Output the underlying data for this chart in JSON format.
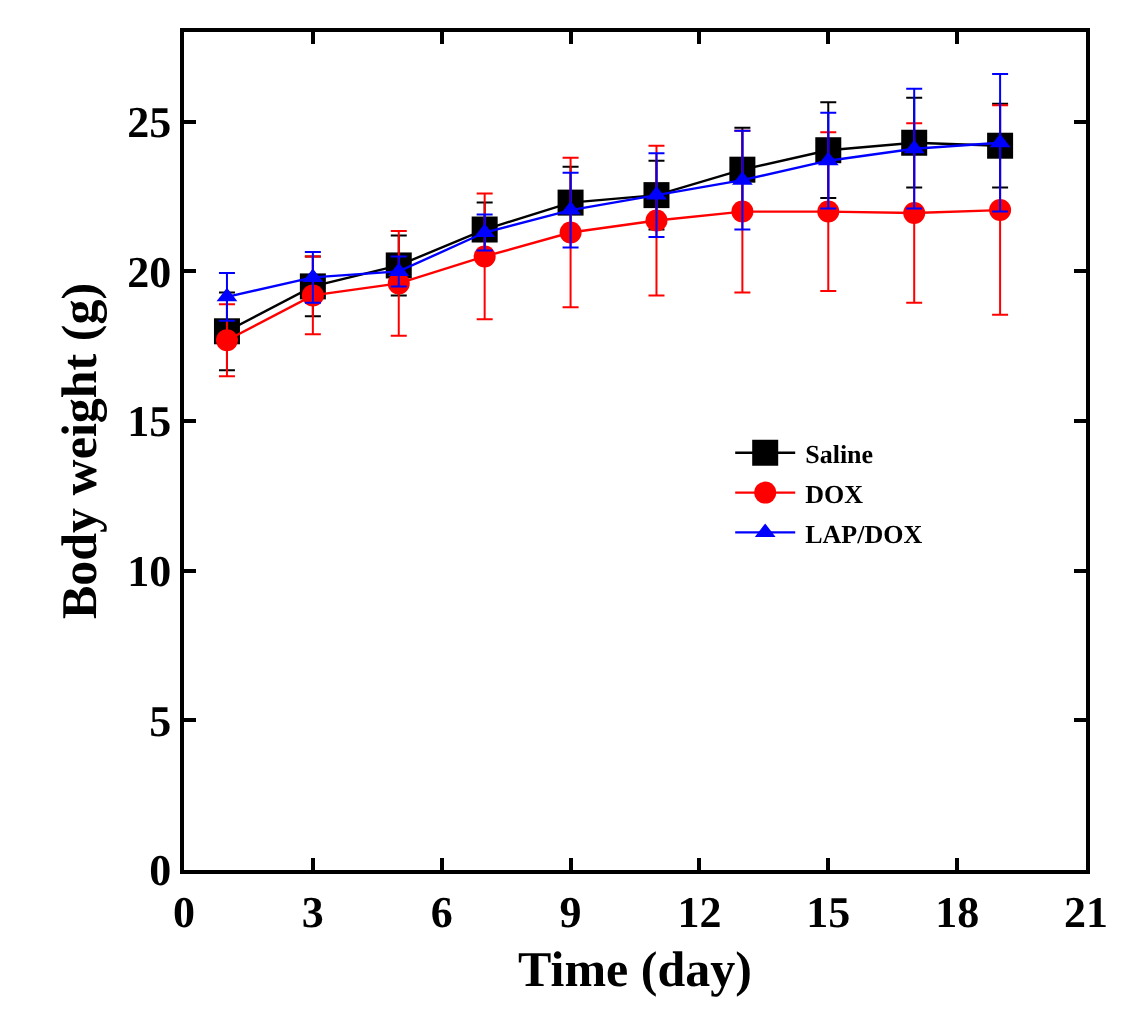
{
  "chart_data": {
    "type": "line",
    "xlabel": "Time (day)",
    "ylabel": "Body weight (g)",
    "x": [
      1,
      3,
      5,
      7,
      9,
      11,
      13,
      15,
      17,
      19
    ],
    "xlim": [
      0,
      21
    ],
    "xticks": [
      0,
      3,
      6,
      9,
      12,
      15,
      18,
      21
    ],
    "ylim": [
      0,
      28
    ],
    "yticks": [
      0,
      5,
      10,
      15,
      20,
      25
    ],
    "legend": "right",
    "series": [
      {
        "name": "Saline",
        "color": "#000000",
        "marker": "square",
        "values": [
          18.0,
          19.5,
          20.2,
          21.4,
          22.3,
          22.55,
          23.4,
          24.05,
          24.3,
          24.2
        ],
        "errors": [
          1.3,
          1.0,
          1.0,
          0.9,
          1.2,
          1.15,
          1.4,
          1.6,
          1.5,
          1.4
        ]
      },
      {
        "name": "DOX",
        "color": "#ff0000",
        "marker": "circle",
        "values": [
          17.7,
          19.2,
          19.6,
          20.5,
          21.3,
          21.7,
          22.0,
          22.0,
          21.95,
          22.05
        ],
        "errors": [
          1.2,
          1.3,
          1.75,
          2.1,
          2.5,
          2.5,
          2.7,
          2.65,
          3.0,
          3.5
        ]
      },
      {
        "name": "LAP/DOX",
        "color": "#0000ff",
        "marker": "triangle",
        "values": [
          19.15,
          19.8,
          20.0,
          21.3,
          22.05,
          22.55,
          23.05,
          23.7,
          24.1,
          24.3
        ],
        "errors": [
          0.8,
          0.85,
          0.5,
          0.6,
          1.25,
          1.4,
          1.65,
          1.6,
          2.0,
          2.3
        ]
      }
    ]
  }
}
